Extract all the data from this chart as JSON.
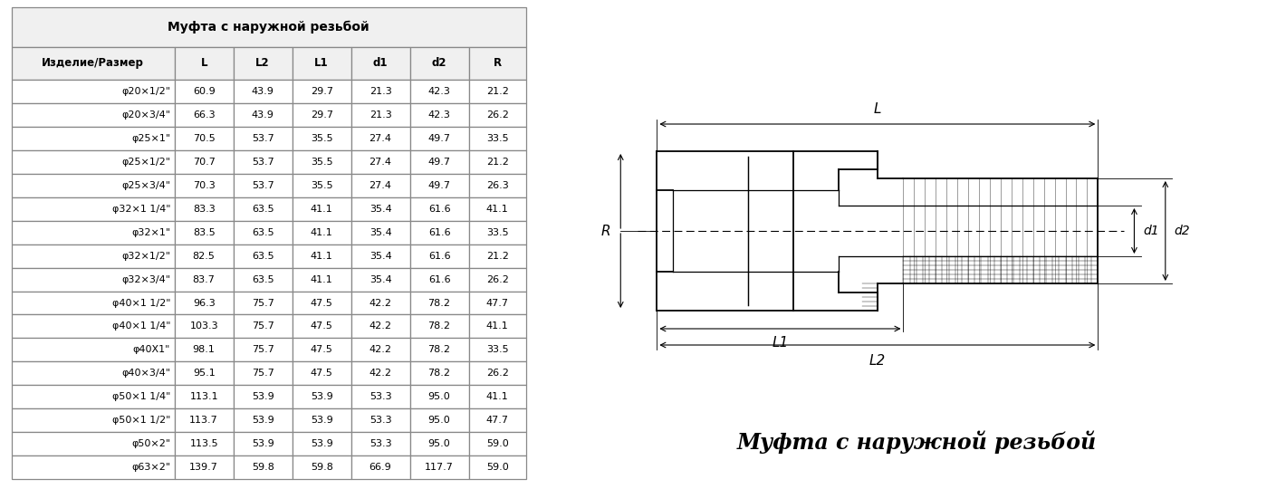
{
  "title": "Муфта с наружной резьбой",
  "columns": [
    "Изделие/Размер",
    "L",
    "L2",
    "L1",
    "d1",
    "d2",
    "R"
  ],
  "rows": [
    [
      "φ20×1/2\"",
      "60.9",
      "43.9",
      "29.7",
      "21.3",
      "42.3",
      "21.2"
    ],
    [
      "φ20×3/4\"",
      "66.3",
      "43.9",
      "29.7",
      "21.3",
      "42.3",
      "26.2"
    ],
    [
      "φ25×1\"",
      "70.5",
      "53.7",
      "35.5",
      "27.4",
      "49.7",
      "33.5"
    ],
    [
      "φ25×1/2\"",
      "70.7",
      "53.7",
      "35.5",
      "27.4",
      "49.7",
      "21.2"
    ],
    [
      "φ25×3/4\"",
      "70.3",
      "53.7",
      "35.5",
      "27.4",
      "49.7",
      "26.3"
    ],
    [
      "φ32×1 1/4\"",
      "83.3",
      "63.5",
      "41.1",
      "35.4",
      "61.6",
      "41.1"
    ],
    [
      "φ32×1\"",
      "83.5",
      "63.5",
      "41.1",
      "35.4",
      "61.6",
      "33.5"
    ],
    [
      "φ32×1/2\"",
      "82.5",
      "63.5",
      "41.1",
      "35.4",
      "61.6",
      "21.2"
    ],
    [
      "φ32×3/4\"",
      "83.7",
      "63.5",
      "41.1",
      "35.4",
      "61.6",
      "26.2"
    ],
    [
      "φ40×1 1/2\"",
      "96.3",
      "75.7",
      "47.5",
      "42.2",
      "78.2",
      "47.7"
    ],
    [
      "φ40×1 1/4\"",
      "103.3",
      "75.7",
      "47.5",
      "42.2",
      "78.2",
      "41.1"
    ],
    [
      "φ40X1\"",
      "98.1",
      "75.7",
      "47.5",
      "42.2",
      "78.2",
      "33.5"
    ],
    [
      "φ40×3/4\"",
      "95.1",
      "75.7",
      "47.5",
      "42.2",
      "78.2",
      "26.2"
    ],
    [
      "φ50×1 1/4\"",
      "113.1",
      "53.9",
      "53.9",
      "53.3",
      "95.0",
      "41.1"
    ],
    [
      "φ50×1 1/2\"",
      "113.7",
      "53.9",
      "53.9",
      "53.3",
      "95.0",
      "47.7"
    ],
    [
      "φ50×2\"",
      "113.5",
      "53.9",
      "53.9",
      "53.3",
      "95.0",
      "59.0"
    ],
    [
      "φ63×2\"",
      "139.7",
      "59.8",
      "59.8",
      "66.9",
      "117.7",
      "59.0"
    ]
  ],
  "bg_color": "#ffffff",
  "header_bg": "#f0f0f0",
  "title_bg": "#e8e8e8",
  "border_color": "#888888",
  "text_color": "#000000",
  "italic_title": "Муфта с наружной резьбой"
}
